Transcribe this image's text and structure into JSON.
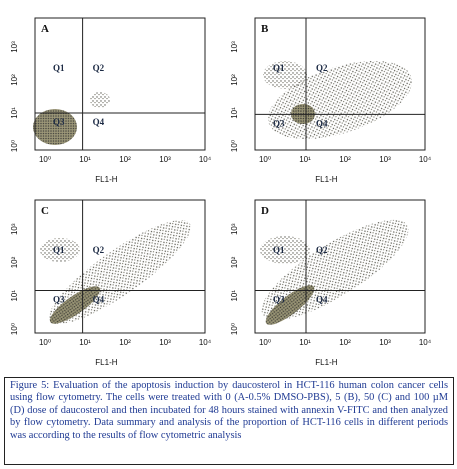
{
  "figure": {
    "panels": [
      {
        "label": "A",
        "quadrants": [
          "Q1",
          "Q2",
          "Q3",
          "Q4"
        ],
        "xticks": [
          "10⁰",
          "10¹",
          "10²",
          "10³",
          "10⁴"
        ],
        "yticks": [
          "10⁰",
          "10¹",
          "10²",
          "10³"
        ],
        "xlabel": "FL1-H"
      },
      {
        "label": "B",
        "quadrants": [
          "Q1",
          "Q2",
          "Q3",
          "Q4"
        ],
        "xticks": [
          "10⁰",
          "10¹",
          "10²",
          "10³",
          "10⁴"
        ],
        "yticks": [
          "10⁰",
          "10¹",
          "10²",
          "10³"
        ],
        "xlabel": "FL1-H"
      },
      {
        "label": "C",
        "quadrants": [
          "Q1",
          "Q2",
          "Q3",
          "Q4"
        ],
        "xticks": [
          "10⁰",
          "10¹",
          "10²",
          "10³",
          "10⁴"
        ],
        "yticks": [
          "10⁰",
          "10¹",
          "10²",
          "10³"
        ],
        "xlabel": "FL1-H"
      },
      {
        "label": "D",
        "quadrants": [
          "Q1",
          "Q2",
          "Q3",
          "Q4"
        ],
        "xticks": [
          "10⁰",
          "10¹",
          "10²",
          "10³",
          "10⁴"
        ],
        "yticks": [
          "10⁰",
          "10¹",
          "10²",
          "10³"
        ],
        "xlabel": "FL1-H"
      }
    ],
    "caption": "Figure 5: Evaluation of the apoptosis induction by daucosterol in HCT-116 human colon cancer cells using flow cytometry. The cells were treated with 0 (A-0.5% DMSO-PBS), 5 (B), 50 (C) and 100 µM (D) dose of daucosterol and then incubated for 48 hours stained with annexin V-FITC and then analyzed by flow cytometry. Data summary and analysis of the proportion of HCT-116 cells in different periods was according to the results of flow cytometric analysis"
  }
}
